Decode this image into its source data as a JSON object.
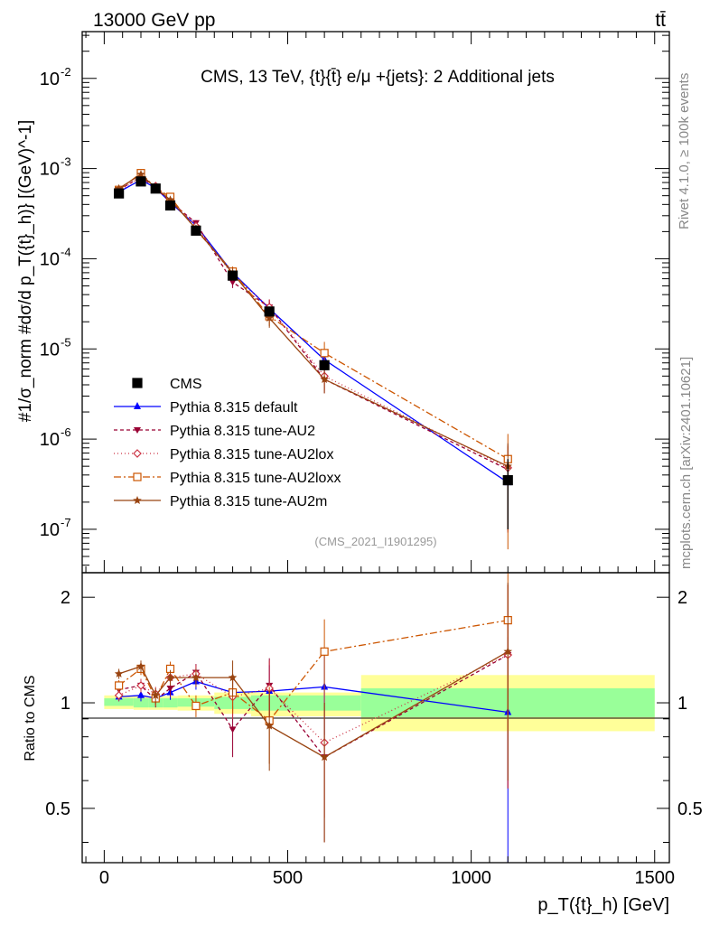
{
  "header": {
    "left": "13000 GeV pp",
    "right": "tt̄",
    "side_right": "Rivet 4.1.0, ≥ 100k events",
    "side_right2": "mcplots.cern.ch [arXiv:2401.10621]"
  },
  "chart_data": {
    "type": "line",
    "title": "CMS, 13 TeV, {t}{t̄} e/μ +{jets}: 2 Additional jets",
    "analysis_tag": "(CMS_2021_I1901295)",
    "xlabel": "p_T({t}_h) [GeV]",
    "ylabel": "#1/σ_norm #dσ/d p_T({t}_h)} [(GeV)^-1]",
    "ratio_ylabel": "Ratio to CMS",
    "xlim": [
      -60,
      1540
    ],
    "ylim": [
      3.3e-08,
      0.033
    ],
    "ratio_ylim": [
      0.35,
      2.35
    ],
    "x_ticks": [
      0,
      500,
      1000,
      1500
    ],
    "y_ticks": [
      "10^-7",
      "10^-6",
      "10^-5",
      "10^-4",
      "10^-3",
      "10^-2"
    ],
    "ratio_ticks": [
      "0.5",
      "1",
      "2"
    ],
    "bins": [
      [
        0,
        80
      ],
      [
        80,
        120
      ],
      [
        120,
        160
      ],
      [
        160,
        200
      ],
      [
        200,
        300
      ],
      [
        300,
        400
      ],
      [
        400,
        500
      ],
      [
        500,
        700
      ],
      [
        700,
        1500
      ]
    ],
    "x": [
      40,
      100,
      140,
      180,
      250,
      350,
      450,
      600,
      1100
    ],
    "data": {
      "name": "CMS",
      "values": [
        0.00053,
        0.00072,
        0.0006,
        0.00039,
        0.000205,
        6.5e-05,
        2.6e-05,
        6.6e-06,
        3.5e-07
      ],
      "err_low": [
        0.00051,
        0.0007,
        0.00058,
        0.000375,
        0.000197,
        6.1e-05,
        2.4e-05,
        5.9e-06,
        1e-07
      ]
    },
    "band_stat": [
      [
        0.98,
        1.03
      ],
      [
        0.97,
        1.03
      ],
      [
        0.97,
        1.03
      ],
      [
        0.97,
        1.03
      ],
      [
        0.975,
        1.03
      ],
      [
        0.96,
        1.04
      ],
      [
        0.95,
        1.05
      ],
      [
        0.95,
        1.05
      ],
      [
        0.91,
        1.1
      ]
    ],
    "band_total": [
      [
        0.96,
        1.05
      ],
      [
        0.955,
        1.045
      ],
      [
        0.955,
        1.045
      ],
      [
        0.955,
        1.045
      ],
      [
        0.95,
        1.05
      ],
      [
        0.93,
        1.07
      ],
      [
        0.915,
        1.07
      ],
      [
        0.915,
        1.07
      ],
      [
        0.83,
        1.2
      ]
    ],
    "series": [
      {
        "name": "Pythia 8.315 default",
        "color": "#0000ff",
        "dash": "",
        "marker": "triangle-up",
        "values": [
          0.00055,
          0.00075,
          0.00061,
          0.00042,
          0.000235,
          7e-05,
          2.8e-05,
          7.6e-06,
          3.3e-07
        ],
        "ratio": [
          1.04,
          1.05,
          1.03,
          1.07,
          1.15,
          1.07,
          1.08,
          1.11,
          0.94
        ],
        "ratio_err": [
          0.03,
          0.04,
          0.04,
          0.05,
          0.06,
          0.12,
          0.2,
          0.3,
          0.6
        ]
      },
      {
        "name": "Pythia 8.315 tune-AU2",
        "color": "#990033",
        "dash": "4,3",
        "marker": "triangle-down",
        "values": [
          0.00058,
          0.00081,
          0.00061,
          0.00043,
          0.00025,
          5.5e-05,
          2.9e-05,
          4.6e-06,
          4.6e-07
        ],
        "ratio": [
          1.09,
          1.12,
          1.02,
          1.1,
          1.22,
          0.84,
          1.12,
          0.7,
          1.37
        ],
        "ratio_err": [
          0.04,
          0.05,
          0.05,
          0.06,
          0.07,
          0.14,
          0.22,
          0.3,
          0.8
        ]
      },
      {
        "name": "Pythia 8.315 tune-AU2lox",
        "color": "#cc3344",
        "dash": "1,3",
        "marker": "diamond",
        "values": [
          0.00056,
          0.00081,
          0.00064,
          0.00046,
          0.00023,
          6.6e-05,
          2.9e-05,
          5e-06,
          4.8e-07
        ],
        "ratio": [
          1.05,
          1.12,
          1.06,
          1.18,
          1.21,
          1.04,
          1.1,
          0.77,
          1.37
        ],
        "ratio_err": [
          0.04,
          0.05,
          0.05,
          0.06,
          0.07,
          0.14,
          0.22,
          0.3,
          0.8
        ]
      },
      {
        "name": "Pythia 8.315 tune-AU2loxx",
        "color": "#cc5500",
        "dash": "8,3,2,3",
        "marker": "square-open",
        "values": [
          0.00058,
          0.00089,
          0.00061,
          0.000485,
          0.00021,
          7.2e-05,
          2.3e-05,
          9e-06,
          6e-07
        ],
        "ratio": [
          1.12,
          1.25,
          1.03,
          1.25,
          0.98,
          1.07,
          0.89,
          1.4,
          1.72
        ],
        "ratio_err": [
          0.04,
          0.05,
          0.05,
          0.06,
          0.07,
          0.14,
          0.22,
          0.33,
          0.9
        ]
      },
      {
        "name": "Pythia 8.315 tune-AU2m",
        "color": "#994411",
        "dash": "",
        "marker": "star",
        "values": [
          0.0006,
          0.00086,
          0.00061,
          0.00045,
          0.000215,
          6.9e-05,
          2.2e-05,
          4.6e-06,
          5e-07
        ],
        "ratio": [
          1.21,
          1.27,
          1.05,
          1.18,
          1.18,
          1.18,
          0.86,
          0.7,
          1.4
        ],
        "ratio_err": [
          0.04,
          0.05,
          0.05,
          0.06,
          0.07,
          0.14,
          0.22,
          0.3,
          0.8
        ]
      }
    ]
  }
}
